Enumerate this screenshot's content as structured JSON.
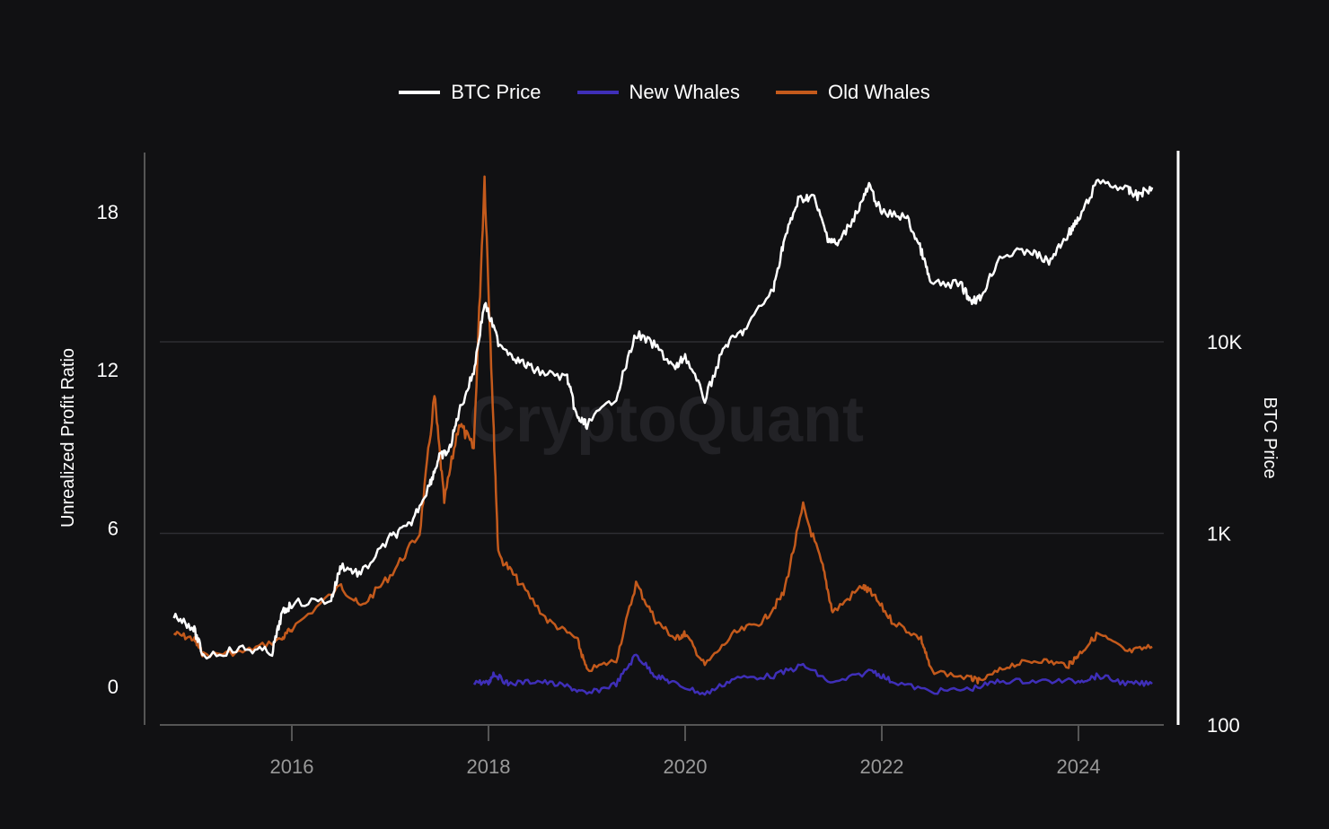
{
  "chart_data": {
    "type": "line",
    "title": "",
    "watermark": "CryptoQuant",
    "legend": [
      "BTC Price",
      "New Whales",
      "Old Whales"
    ],
    "legend_position": "top-center",
    "colors": {
      "BTC Price": "#ffffff",
      "New Whales": "#3f2fb8",
      "Old Whales": "#c45a1c"
    },
    "ylabel_left": "Unrealized Profit Ratio",
    "ylabel_right": "BTC Price",
    "yticks_left": [
      "0",
      "6",
      "12",
      "18"
    ],
    "yticks_left_values": [
      0,
      6,
      12,
      18
    ],
    "ylim_left": [
      -1.4,
      20.3
    ],
    "yticks_right": [
      "100",
      "1K",
      "10K"
    ],
    "yticks_right_values": [
      100,
      1000,
      10000
    ],
    "ylim_right_log": [
      100,
      90000
    ],
    "xticks": [
      "2016",
      "2018",
      "2020",
      "2022",
      "2024"
    ],
    "xticks_values": [
      2016,
      2018,
      2020,
      2022,
      2024
    ],
    "xlim": [
      2014.6,
      2024.85
    ],
    "grid": "horizontal at right-axis ticks",
    "series": [
      {
        "name": "BTC Price",
        "axis": "right",
        "x": [
          2014.8,
          2015.0,
          2015.1,
          2015.5,
          2015.8,
          2015.9,
          2016.0,
          2016.4,
          2016.5,
          2016.7,
          2017.0,
          2017.2,
          2017.4,
          2017.5,
          2017.6,
          2017.7,
          2017.85,
          2017.96,
          2018.1,
          2018.3,
          2018.5,
          2018.8,
          2018.9,
          2019.0,
          2019.3,
          2019.5,
          2019.7,
          2019.9,
          2020.0,
          2020.2,
          2020.4,
          2020.6,
          2020.9,
          2021.0,
          2021.15,
          2021.3,
          2021.45,
          2021.55,
          2021.75,
          2021.87,
          2022.0,
          2022.25,
          2022.4,
          2022.5,
          2022.8,
          2022.9,
          2023.0,
          2023.2,
          2023.5,
          2023.7,
          2023.9,
          2024.0,
          2024.2,
          2024.5,
          2024.6,
          2024.75
        ],
        "values": [
          380,
          320,
          230,
          250,
          240,
          380,
          430,
          450,
          680,
          610,
          950,
          1100,
          1800,
          2500,
          2700,
          4300,
          7000,
          16000,
          10000,
          8000,
          7000,
          6500,
          4000,
          3700,
          5200,
          11000,
          9500,
          7200,
          8500,
          5000,
          9500,
          11500,
          19000,
          33000,
          55000,
          58000,
          35000,
          32000,
          48000,
          65000,
          47000,
          45000,
          30000,
          20000,
          20000,
          16500,
          16800,
          28000,
          30000,
          26000,
          37000,
          43000,
          70000,
          62000,
          58000,
          64000
        ]
      },
      {
        "name": "New Whales",
        "axis": "left",
        "x": [
          2017.85,
          2018.0,
          2018.05,
          2018.2,
          2018.5,
          2018.8,
          2019.0,
          2019.3,
          2019.5,
          2019.7,
          2019.9,
          2020.2,
          2020.5,
          2020.9,
          2021.2,
          2021.5,
          2021.9,
          2022.1,
          2022.5,
          2022.9,
          2023.2,
          2023.6,
          2024.0,
          2024.2,
          2024.5,
          2024.75
        ],
        "values": [
          0.2,
          0.1,
          0.5,
          0.1,
          0.2,
          0.0,
          -0.3,
          0.1,
          1.2,
          0.4,
          0.1,
          -0.3,
          0.3,
          0.4,
          0.8,
          0.1,
          0.6,
          0.2,
          -0.2,
          -0.1,
          0.2,
          0.2,
          0.2,
          0.4,
          0.1,
          0.1
        ]
      },
      {
        "name": "Old Whales",
        "axis": "left",
        "x": [
          2014.8,
          2015.0,
          2015.1,
          2015.5,
          2015.9,
          2016.0,
          2016.5,
          2016.7,
          2017.0,
          2017.3,
          2017.45,
          2017.55,
          2017.7,
          2017.85,
          2017.96,
          2018.05,
          2018.1,
          2018.3,
          2018.6,
          2018.9,
          2019.0,
          2019.3,
          2019.5,
          2019.7,
          2019.9,
          2020.0,
          2020.2,
          2020.5,
          2020.8,
          2021.0,
          2021.2,
          2021.4,
          2021.5,
          2021.8,
          2021.9,
          2022.1,
          2022.4,
          2022.5,
          2022.9,
          2023.0,
          2023.3,
          2023.6,
          2023.9,
          2024.0,
          2024.2,
          2024.5,
          2024.75
        ],
        "values": [
          2.0,
          1.8,
          1.2,
          1.3,
          1.8,
          2.2,
          3.8,
          3.0,
          4.2,
          5.8,
          11,
          7,
          10,
          9,
          19.3,
          10,
          5,
          4,
          2.5,
          1.8,
          0.6,
          1.0,
          3.9,
          2.5,
          1.8,
          2.0,
          0.8,
          2.0,
          2.5,
          3.5,
          6.8,
          4.5,
          2.8,
          3.8,
          3.5,
          2.5,
          1.8,
          0.6,
          0.3,
          0.2,
          0.8,
          1.0,
          0.8,
          1.2,
          2.0,
          1.3,
          1.5
        ]
      }
    ]
  }
}
